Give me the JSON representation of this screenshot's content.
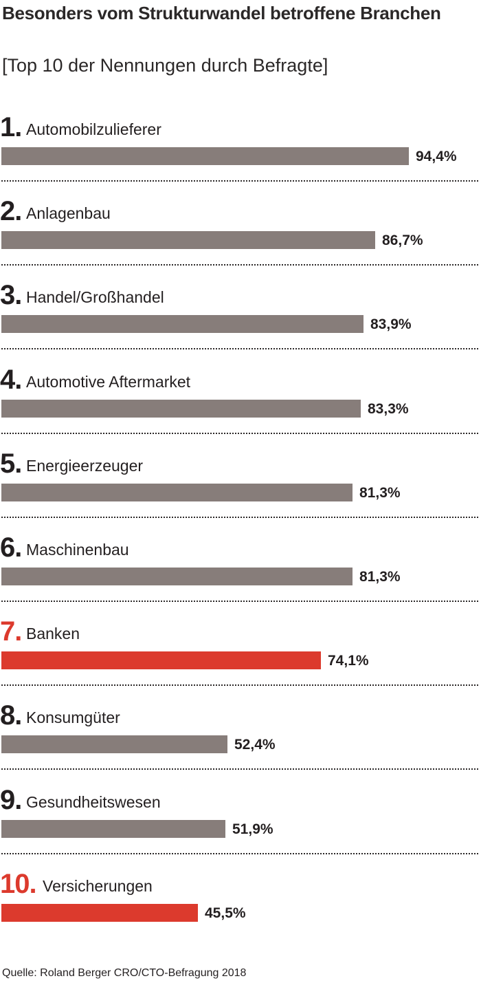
{
  "title": "Besonders vom Strukturwandel betroffene Branchen",
  "subtitle": "[Top 10 der Nennungen durch Befragte]",
  "source": "Quelle: Roland Berger CRO/CTO-Befragung 2018",
  "colors": {
    "bar_default": "#877d7a",
    "bar_highlight": "#dc3a2d",
    "text": "#231f20"
  },
  "rows": [
    {
      "rank": "1.",
      "label": "Automobilzulieferer",
      "value_label": "94,4%",
      "highlight": false
    },
    {
      "rank": "2.",
      "label": "Anlagenbau",
      "value_label": "86,7%",
      "highlight": false
    },
    {
      "rank": "3.",
      "label": "Handel/Großhandel",
      "value_label": "83,9%",
      "highlight": false
    },
    {
      "rank": "4.",
      "label": "Automotive Aftermarket",
      "value_label": "83,3%",
      "highlight": false
    },
    {
      "rank": "5.",
      "label": "Energieerzeuger",
      "value_label": "81,3%",
      "highlight": false
    },
    {
      "rank": "6.",
      "label": "Maschinenbau",
      "value_label": "81,3%",
      "highlight": false
    },
    {
      "rank": "7.",
      "label": "Banken",
      "value_label": "74,1%",
      "highlight": true
    },
    {
      "rank": "8.",
      "label": "Konsumgüter",
      "value_label": "52,4%",
      "highlight": false
    },
    {
      "rank": "9.",
      "label": "Gesundheitswesen",
      "value_label": "51,9%",
      "highlight": false
    },
    {
      "rank": "10.",
      "label": "Versicherungen",
      "value_label": "45,5%",
      "highlight": true
    }
  ],
  "chart_data": {
    "type": "bar",
    "orientation": "horizontal",
    "title": "Besonders vom Strukturwandel betroffene Branchen",
    "subtitle": "[Top 10 der Nennungen durch Befragte]",
    "categories": [
      "Automobilzulieferer",
      "Anlagenbau",
      "Handel/Großhandel",
      "Automotive Aftermarket",
      "Energieerzeuger",
      "Maschinenbau",
      "Banken",
      "Konsumgüter",
      "Gesundheitswesen",
      "Versicherungen"
    ],
    "values": [
      94.4,
      86.7,
      83.9,
      83.3,
      81.3,
      81.3,
      74.1,
      52.4,
      51.9,
      45.5
    ],
    "unit": "%",
    "highlighted_categories": [
      "Banken",
      "Versicherungen"
    ],
    "xlim": [
      0,
      100
    ],
    "grid": false,
    "legend": "none"
  }
}
